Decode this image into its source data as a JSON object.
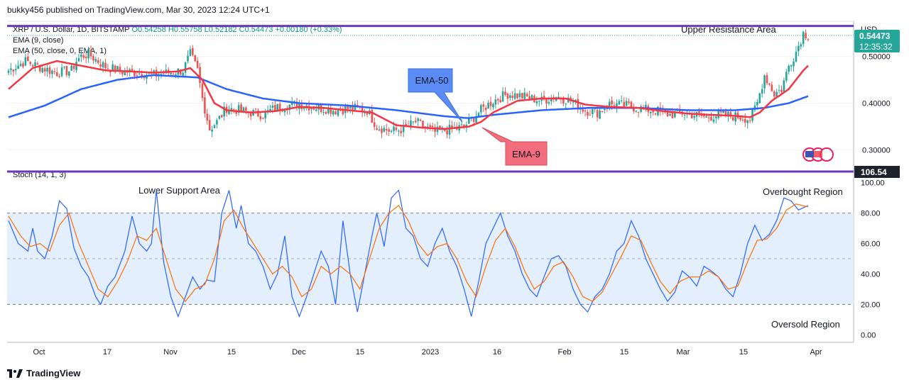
{
  "header": {
    "published": "bukky456 published on TradingView.com, Mar 30, 2023 12:24 UTC+1"
  },
  "legend": {
    "symbol": "XRP / U.S. Dollar, 1D, BITSTAMP",
    "open": "O0.54258",
    "high": "H0.55758",
    "low": "L0.52182",
    "close": "C0.54473",
    "change": "+0.00180 (+0.33%)",
    "ema9": "EMA (9, close)",
    "ema50": "EMA (50, close, 0, EMA, 1)"
  },
  "stoch_legend": "Stoch (14, 1, 3)",
  "price_axis": {
    "currency": "USD",
    "ticks": [
      "0.50000",
      "0.40000",
      "0.30000"
    ],
    "last_price": "0.54473",
    "countdown": "12:35:32",
    "last_price_color": "#26a69a"
  },
  "stoch_axis": {
    "ticks": [
      "100.00",
      "80.00",
      "60.00",
      "40.00",
      "20.00",
      "0.00"
    ],
    "highlight": "106.54"
  },
  "time_axis": [
    "Oct",
    "17",
    "Nov",
    "15",
    "Dec",
    "15",
    "2023",
    "16",
    "Feb",
    "15",
    "Mar",
    "15",
    "Apr"
  ],
  "annotations": {
    "upper_resistance": "Upper Resistance Area",
    "lower_support": "Lower Support Area",
    "overbought": "Overbought Region",
    "oversold": "Oversold Region",
    "ema50_callout": "EMA-50",
    "ema9_callout": "EMA-9"
  },
  "footer": {
    "brand": "TradingView"
  },
  "colors": {
    "up": "#26a69a",
    "down": "#ef5350",
    "ema9": "#f23645",
    "ema50": "#2962ff",
    "resistance_line": "#673ab7",
    "stoch_k": "#2962ff",
    "stoch_d": "#ff6d00",
    "stoch_band": "#e3effd",
    "callout_blue": "#5b8cf5",
    "callout_red": "#f26d7d"
  },
  "chart_data": [
    {
      "type": "candlestick",
      "title": "XRP / U.S. Dollar, 1D, BITSTAMP",
      "ylim": [
        0.26,
        0.575
      ],
      "resistance_level": 0.565,
      "close_anchors": [
        [
          0,
          0.47
        ],
        [
          7,
          0.49
        ],
        [
          14,
          0.475
        ],
        [
          20,
          0.465
        ],
        [
          26,
          0.47
        ],
        [
          28,
          0.49
        ],
        [
          30,
          0.5
        ],
        [
          33,
          0.505
        ],
        [
          40,
          0.478
        ],
        [
          47,
          0.468
        ],
        [
          54,
          0.465
        ],
        [
          60,
          0.46
        ],
        [
          66,
          0.465
        ],
        [
          72,
          0.47
        ],
        [
          75,
          0.505
        ],
        [
          78,
          0.47
        ],
        [
          80,
          0.41
        ],
        [
          83,
          0.345
        ],
        [
          86,
          0.36
        ],
        [
          90,
          0.39
        ],
        [
          95,
          0.385
        ],
        [
          100,
          0.38
        ],
        [
          105,
          0.375
        ],
        [
          110,
          0.39
        ],
        [
          115,
          0.395
        ],
        [
          120,
          0.398
        ],
        [
          128,
          0.39
        ],
        [
          135,
          0.385
        ],
        [
          142,
          0.39
        ],
        [
          148,
          0.385
        ],
        [
          152,
          0.35
        ],
        [
          158,
          0.34
        ],
        [
          163,
          0.345
        ],
        [
          168,
          0.36
        ],
        [
          172,
          0.348
        ],
        [
          176,
          0.338
        ],
        [
          180,
          0.342
        ],
        [
          184,
          0.345
        ],
        [
          188,
          0.35
        ],
        [
          191,
          0.365
        ],
        [
          195,
          0.385
        ],
        [
          200,
          0.405
        ],
        [
          206,
          0.42
        ],
        [
          212,
          0.415
        ],
        [
          220,
          0.405
        ],
        [
          226,
          0.415
        ],
        [
          232,
          0.405
        ],
        [
          238,
          0.385
        ],
        [
          243,
          0.38
        ],
        [
          248,
          0.398
        ],
        [
          255,
          0.395
        ],
        [
          262,
          0.387
        ],
        [
          268,
          0.383
        ],
        [
          273,
          0.375
        ],
        [
          278,
          0.38
        ],
        [
          283,
          0.375
        ],
        [
          288,
          0.37
        ],
        [
          293,
          0.375
        ],
        [
          298,
          0.373
        ],
        [
          303,
          0.37
        ],
        [
          306,
          0.365
        ],
        [
          309,
          0.4
        ],
        [
          312,
          0.46
        ],
        [
          316,
          0.42
        ],
        [
          319,
          0.43
        ],
        [
          322,
          0.48
        ],
        [
          325,
          0.51
        ],
        [
          328,
          0.55
        ],
        [
          330,
          0.545
        ]
      ],
      "ema9_anchors": [
        [
          0,
          0.43
        ],
        [
          10,
          0.475
        ],
        [
          20,
          0.49
        ],
        [
          30,
          0.48
        ],
        [
          40,
          0.47
        ],
        [
          50,
          0.468
        ],
        [
          60,
          0.465
        ],
        [
          70,
          0.468
        ],
        [
          75,
          0.475
        ],
        [
          80,
          0.45
        ],
        [
          85,
          0.4
        ],
        [
          90,
          0.385
        ],
        [
          100,
          0.38
        ],
        [
          110,
          0.383
        ],
        [
          120,
          0.392
        ],
        [
          130,
          0.39
        ],
        [
          140,
          0.385
        ],
        [
          150,
          0.38
        ],
        [
          160,
          0.353
        ],
        [
          170,
          0.348
        ],
        [
          180,
          0.345
        ],
        [
          190,
          0.35
        ],
        [
          195,
          0.36
        ],
        [
          200,
          0.38
        ],
        [
          210,
          0.405
        ],
        [
          220,
          0.41
        ],
        [
          230,
          0.41
        ],
        [
          238,
          0.397
        ],
        [
          248,
          0.392
        ],
        [
          260,
          0.39
        ],
        [
          270,
          0.383
        ],
        [
          280,
          0.378
        ],
        [
          290,
          0.375
        ],
        [
          300,
          0.373
        ],
        [
          306,
          0.37
        ],
        [
          310,
          0.38
        ],
        [
          315,
          0.405
        ],
        [
          322,
          0.43
        ],
        [
          328,
          0.47
        ],
        [
          330,
          0.48
        ]
      ],
      "ema50_anchors": [
        [
          0,
          0.37
        ],
        [
          15,
          0.395
        ],
        [
          30,
          0.43
        ],
        [
          45,
          0.45
        ],
        [
          60,
          0.46
        ],
        [
          78,
          0.455
        ],
        [
          90,
          0.43
        ],
        [
          105,
          0.41
        ],
        [
          120,
          0.4
        ],
        [
          140,
          0.395
        ],
        [
          160,
          0.385
        ],
        [
          180,
          0.372
        ],
        [
          190,
          0.368
        ],
        [
          200,
          0.375
        ],
        [
          220,
          0.385
        ],
        [
          240,
          0.39
        ],
        [
          260,
          0.39
        ],
        [
          280,
          0.385
        ],
        [
          300,
          0.385
        ],
        [
          312,
          0.39
        ],
        [
          322,
          0.4
        ],
        [
          330,
          0.415
        ]
      ]
    },
    {
      "type": "line",
      "title": "Stoch (14, 1, 3)",
      "ylim": [
        -5,
        105
      ],
      "bands": [
        20,
        50,
        80
      ],
      "k_anchors": [
        [
          0,
          75
        ],
        [
          4,
          60
        ],
        [
          8,
          55
        ],
        [
          10,
          70
        ],
        [
          12,
          55
        ],
        [
          15,
          50
        ],
        [
          18,
          65
        ],
        [
          21,
          88
        ],
        [
          24,
          83
        ],
        [
          27,
          57
        ],
        [
          30,
          45
        ],
        [
          33,
          38
        ],
        [
          36,
          25
        ],
        [
          38,
          20
        ],
        [
          41,
          32
        ],
        [
          44,
          38
        ],
        [
          48,
          55
        ],
        [
          51,
          78
        ],
        [
          54,
          60
        ],
        [
          57,
          55
        ],
        [
          59,
          60
        ],
        [
          61,
          95
        ],
        [
          64,
          48
        ],
        [
          67,
          25
        ],
        [
          70,
          12
        ],
        [
          73,
          25
        ],
        [
          76,
          38
        ],
        [
          79,
          30
        ],
        [
          82,
          36
        ],
        [
          85,
          35
        ],
        [
          88,
          80
        ],
        [
          91,
          95
        ],
        [
          94,
          70
        ],
        [
          96,
          85
        ],
        [
          99,
          60
        ],
        [
          102,
          55
        ],
        [
          105,
          45
        ],
        [
          108,
          30
        ],
        [
          111,
          40
        ],
        [
          114,
          65
        ],
        [
          117,
          25
        ],
        [
          120,
          12
        ],
        [
          123,
          25
        ],
        [
          126,
          40
        ],
        [
          129,
          55
        ],
        [
          132,
          45
        ],
        [
          135,
          20
        ],
        [
          138,
          75
        ],
        [
          141,
          40
        ],
        [
          144,
          15
        ],
        [
          147,
          40
        ],
        [
          150,
          65
        ],
        [
          152,
          80
        ],
        [
          155,
          58
        ],
        [
          158,
          90
        ],
        [
          161,
          95
        ],
        [
          164,
          70
        ],
        [
          167,
          65
        ],
        [
          170,
          50
        ],
        [
          173,
          45
        ],
        [
          176,
          60
        ],
        [
          179,
          70
        ],
        [
          182,
          55
        ],
        [
          185,
          45
        ],
        [
          188,
          30
        ],
        [
          191,
          12
        ],
        [
          194,
          35
        ],
        [
          197,
          60
        ],
        [
          200,
          70
        ],
        [
          203,
          80
        ],
        [
          206,
          65
        ],
        [
          209,
          55
        ],
        [
          212,
          40
        ],
        [
          215,
          30
        ],
        [
          218,
          25
        ],
        [
          221,
          38
        ],
        [
          224,
          50
        ],
        [
          227,
          52
        ],
        [
          230,
          45
        ],
        [
          233,
          30
        ],
        [
          236,
          20
        ],
        [
          239,
          15
        ],
        [
          242,
          25
        ],
        [
          245,
          30
        ],
        [
          248,
          40
        ],
        [
          251,
          55
        ],
        [
          254,
          60
        ],
        [
          257,
          75
        ],
        [
          260,
          65
        ],
        [
          263,
          50
        ],
        [
          266,
          40
        ],
        [
          269,
          30
        ],
        [
          272,
          22
        ],
        [
          275,
          28
        ],
        [
          278,
          42
        ],
        [
          281,
          38
        ],
        [
          284,
          32
        ],
        [
          287,
          45
        ],
        [
          290,
          42
        ],
        [
          293,
          38
        ],
        [
          296,
          30
        ],
        [
          299,
          25
        ],
        [
          302,
          40
        ],
        [
          305,
          60
        ],
        [
          308,
          72
        ],
        [
          311,
          62
        ],
        [
          314,
          66
        ],
        [
          317,
          75
        ],
        [
          320,
          90
        ],
        [
          323,
          88
        ],
        [
          326,
          82
        ],
        [
          330,
          85
        ]
      ],
      "d_anchors": [
        [
          0,
          78
        ],
        [
          5,
          65
        ],
        [
          9,
          58
        ],
        [
          13,
          60
        ],
        [
          17,
          55
        ],
        [
          21,
          72
        ],
        [
          25,
          80
        ],
        [
          29,
          60
        ],
        [
          33,
          45
        ],
        [
          37,
          30
        ],
        [
          41,
          25
        ],
        [
          45,
          35
        ],
        [
          49,
          48
        ],
        [
          53,
          65
        ],
        [
          57,
          62
        ],
        [
          61,
          70
        ],
        [
          65,
          50
        ],
        [
          69,
          30
        ],
        [
          73,
          22
        ],
        [
          77,
          30
        ],
        [
          81,
          33
        ],
        [
          85,
          50
        ],
        [
          89,
          75
        ],
        [
          93,
          82
        ],
        [
          97,
          70
        ],
        [
          101,
          60
        ],
        [
          105,
          50
        ],
        [
          109,
          40
        ],
        [
          113,
          45
        ],
        [
          117,
          38
        ],
        [
          121,
          25
        ],
        [
          125,
          30
        ],
        [
          129,
          45
        ],
        [
          133,
          40
        ],
        [
          137,
          45
        ],
        [
          141,
          40
        ],
        [
          145,
          30
        ],
        [
          149,
          50
        ],
        [
          153,
          70
        ],
        [
          157,
          80
        ],
        [
          161,
          85
        ],
        [
          165,
          75
        ],
        [
          169,
          60
        ],
        [
          173,
          52
        ],
        [
          177,
          58
        ],
        [
          181,
          60
        ],
        [
          185,
          50
        ],
        [
          189,
          35
        ],
        [
          193,
          25
        ],
        [
          197,
          45
        ],
        [
          201,
          62
        ],
        [
          205,
          70
        ],
        [
          209,
          58
        ],
        [
          213,
          42
        ],
        [
          217,
          30
        ],
        [
          221,
          35
        ],
        [
          225,
          45
        ],
        [
          229,
          48
        ],
        [
          233,
          38
        ],
        [
          237,
          25
        ],
        [
          241,
          22
        ],
        [
          245,
          28
        ],
        [
          249,
          40
        ],
        [
          253,
          52
        ],
        [
          257,
          65
        ],
        [
          261,
          62
        ],
        [
          265,
          48
        ],
        [
          269,
          35
        ],
        [
          273,
          27
        ],
        [
          277,
          35
        ],
        [
          281,
          38
        ],
        [
          285,
          38
        ],
        [
          289,
          42
        ],
        [
          293,
          38
        ],
        [
          297,
          30
        ],
        [
          301,
          32
        ],
        [
          305,
          48
        ],
        [
          309,
          62
        ],
        [
          313,
          63
        ],
        [
          317,
          70
        ],
        [
          321,
          82
        ],
        [
          325,
          86
        ],
        [
          330,
          84
        ]
      ]
    }
  ]
}
